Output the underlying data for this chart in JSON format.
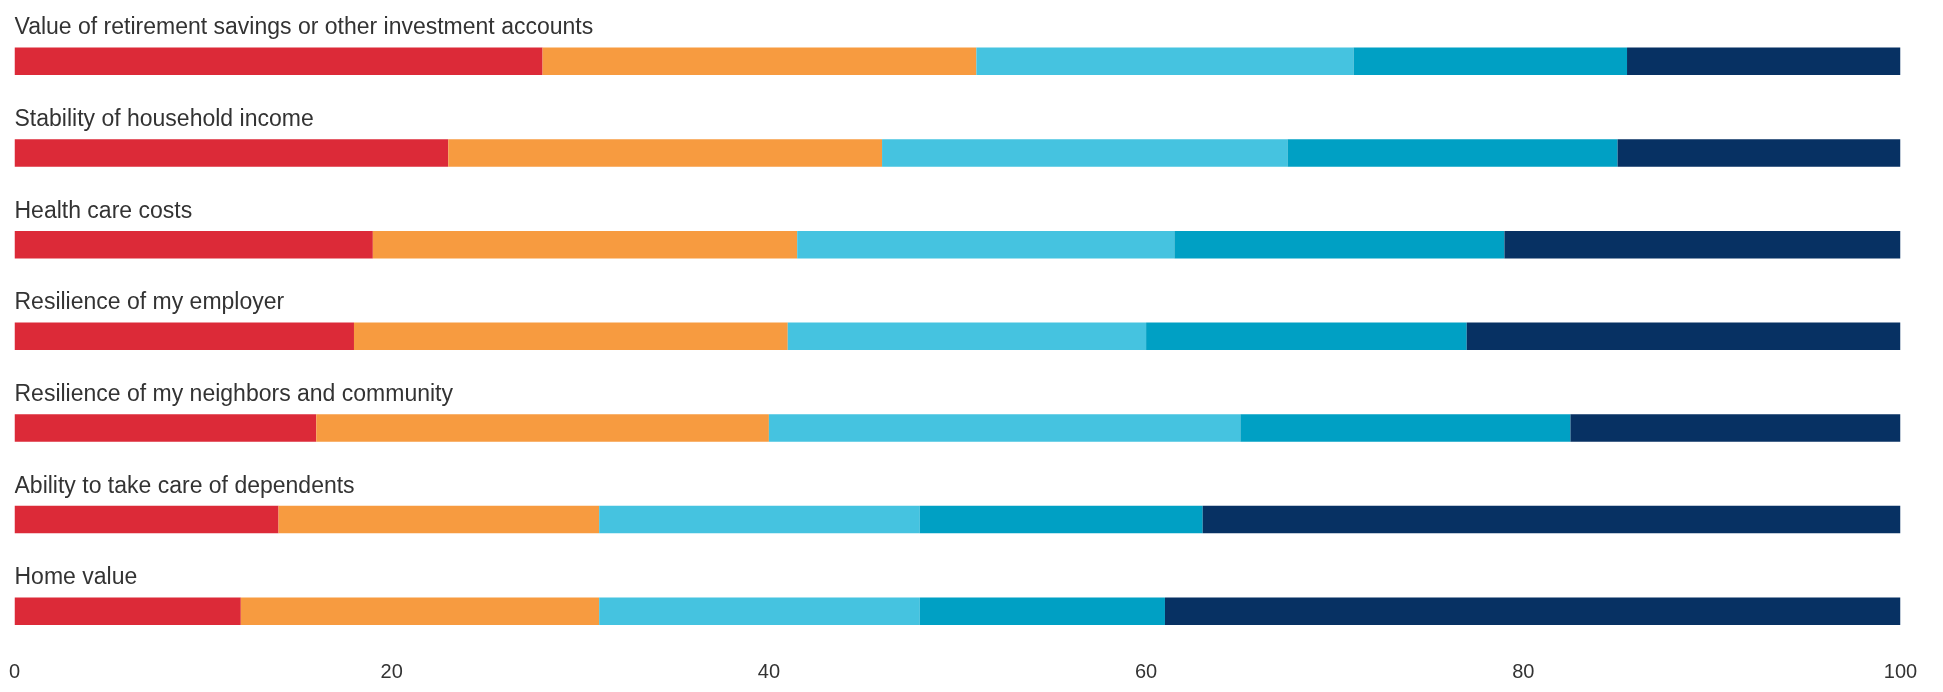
{
  "chart_data": {
    "type": "bar",
    "orientation": "horizontal",
    "stacked": true,
    "categories": [
      "Value of retirement savings or other investment accounts",
      "Stability of household income",
      "Health care costs",
      "Resilience of my employer",
      "Resilience of my neighbors and community",
      "Ability to take care of dependents",
      "Home value"
    ],
    "series": [
      {
        "color": "#dc2a38",
        "values": [
          28,
          23,
          19,
          18,
          16,
          14,
          12
        ]
      },
      {
        "color": "#f79b40",
        "values": [
          23,
          23,
          22.5,
          23,
          24,
          17,
          19
        ]
      },
      {
        "color": "#45c3e0",
        "values": [
          20,
          21.5,
          20,
          19,
          25,
          17,
          17
        ]
      },
      {
        "color": "#00a0c4",
        "values": [
          14.5,
          17.5,
          17.5,
          17,
          17.5,
          15,
          13
        ]
      },
      {
        "color": "#073163",
        "values": [
          14.5,
          15,
          21,
          23,
          17.5,
          37,
          39
        ]
      }
    ],
    "xlim": [
      0,
      100
    ],
    "xticks": [
      0,
      20,
      40,
      60,
      80,
      100
    ],
    "grid": false
  }
}
